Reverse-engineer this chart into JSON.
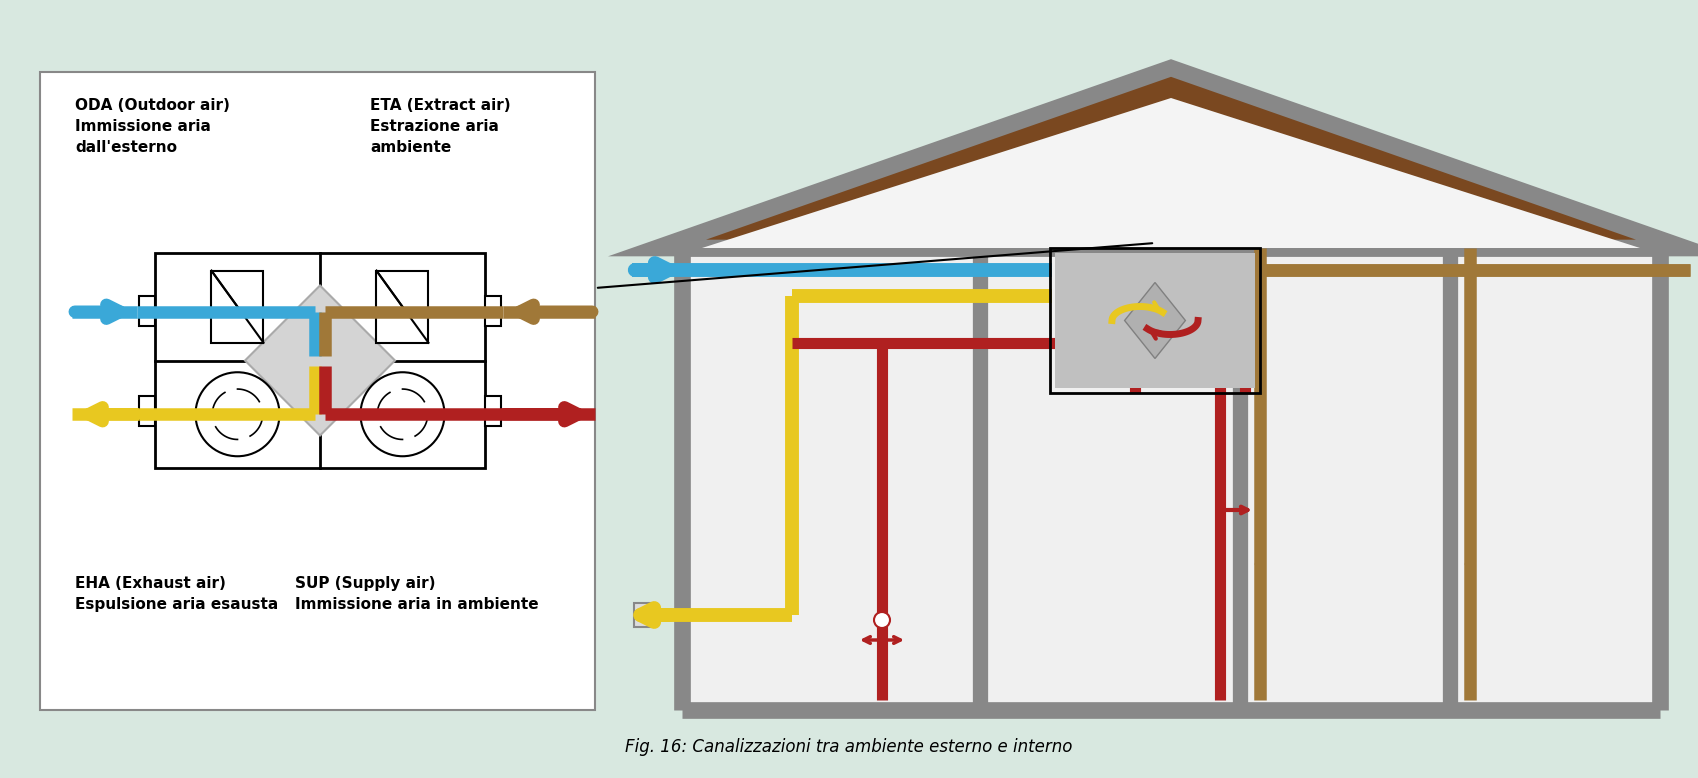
{
  "bg_color": "#d8e8e0",
  "title": "Fig. 16: Canalizzazioni tra ambiente esterno e interno",
  "color_blue": "#3aa8d8",
  "color_yellow": "#e8c820",
  "color_brown": "#a07838",
  "color_red": "#b02020",
  "color_gray": "#888888",
  "color_gray_dark": "#606060",
  "color_white": "#ffffff",
  "color_light_gray": "#c8c8c8",
  "color_house_wall": "#d8d8d8",
  "color_roof": "#7a4820",
  "color_roof_edge": "#888888",
  "color_box_bg": "#ffffff",
  "label_ODA": "ODA (Outdoor air)\nImmissione aria\ndall'esterno",
  "label_ETA": "ETA (Extract air)\nEstrazione aria\nambiente",
  "label_EHA": "EHA (Exhaust air)\nEspulsione aria esausta",
  "label_SUP": "SUP (Supply air)\nImmissione aria in ambiente"
}
